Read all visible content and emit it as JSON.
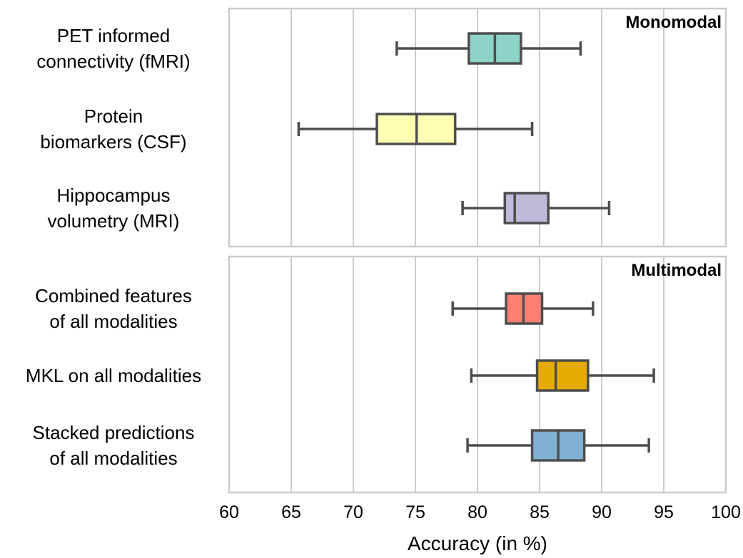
{
  "chart_data": {
    "type": "boxplot",
    "orientation": "horizontal",
    "xlabel": "Accuracy (in %)",
    "xlim": [
      60,
      100
    ],
    "xticks": [
      60,
      65,
      70,
      75,
      80,
      85,
      90,
      95,
      100
    ],
    "grid": "vertical",
    "panels": [
      {
        "label": "Monomodal",
        "categories": [
          {
            "name_lines": [
              "PET informed",
              "connectivity (fMRI)"
            ],
            "color": "#8dd3c7",
            "whisker_low": 73.5,
            "q1": 79.3,
            "median": 81.4,
            "q3": 83.5,
            "whisker_high": 88.3
          },
          {
            "name_lines": [
              "Protein",
              "biomarkers (CSF)"
            ],
            "color": "#ffffb3",
            "whisker_low": 65.6,
            "q1": 71.9,
            "median": 75.1,
            "q3": 78.2,
            "whisker_high": 84.4
          },
          {
            "name_lines": [
              "Hippocampus",
              "volumetry (MRI)"
            ],
            "color": "#bebada",
            "whisker_low": 78.8,
            "q1": 82.2,
            "median": 83.0,
            "q3": 85.7,
            "whisker_high": 90.6
          }
        ]
      },
      {
        "label": "Multimodal",
        "categories": [
          {
            "name_lines": [
              "Combined features",
              "of all modalities"
            ],
            "color": "#fb8072",
            "whisker_low": 78.0,
            "q1": 82.3,
            "median": 83.7,
            "q3": 85.2,
            "whisker_high": 89.3
          },
          {
            "name_lines": [
              "MKL on all modalities"
            ],
            "color": "#e6ab02",
            "whisker_low": 79.5,
            "q1": 84.8,
            "median": 86.3,
            "q3": 88.9,
            "whisker_high": 94.2
          },
          {
            "name_lines": [
              "Stacked predictions",
              "of all modalities"
            ],
            "color": "#80b1d3",
            "whisker_low": 79.2,
            "q1": 84.4,
            "median": 86.5,
            "q3": 88.6,
            "whisker_high": 93.8
          }
        ]
      }
    ]
  }
}
